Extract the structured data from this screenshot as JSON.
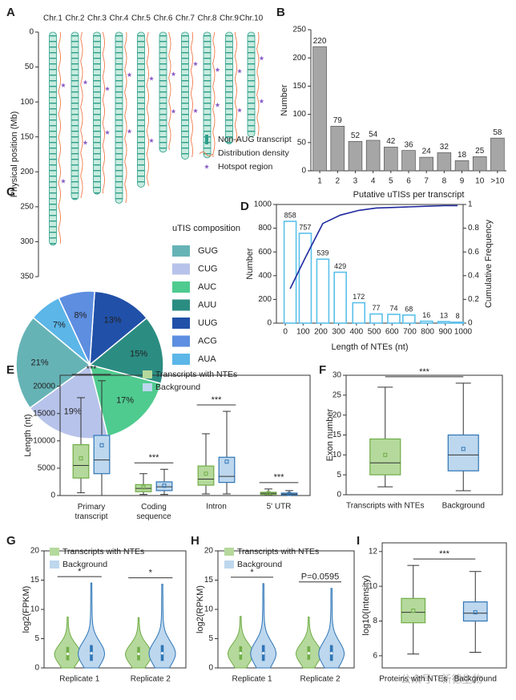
{
  "chart_data": [
    {
      "type": "ideogram",
      "panel": "A",
      "categories": [
        "Chr.1",
        "Chr.2",
        "Chr.3",
        "Chr.4",
        "Chr.5",
        "Chr.6",
        "Chr.7",
        "Chr.8",
        "Chr.9",
        "Chr.10"
      ],
      "values": [
        305,
        240,
        232,
        245,
        222,
        172,
        182,
        180,
        160,
        150
      ],
      "ylabel": "Physical position (Mb)",
      "ylim": [
        0,
        350
      ],
      "yticks": [
        0,
        50,
        100,
        150,
        200,
        250,
        300,
        350
      ],
      "color": "#2e9e8a",
      "density_color": "#f07a4a",
      "hotspot_color": "#8a5cc8",
      "legend": [
        "Non-AUG transcript",
        "Distribution density",
        "Hotspot region"
      ]
    },
    {
      "type": "bar",
      "panel": "B",
      "categories": [
        "1",
        "2",
        "3",
        "4",
        "5",
        "6",
        "7",
        "8",
        "9",
        "10",
        ">10"
      ],
      "values": [
        220,
        79,
        52,
        54,
        42,
        36,
        24,
        32,
        18,
        25,
        58
      ],
      "xlabel": "Putative uTISs per transcript",
      "ylabel": "Number",
      "ylim": [
        0,
        250
      ],
      "yticks": [
        0,
        50,
        100,
        150,
        200,
        250
      ],
      "color": "#a6a6a6"
    },
    {
      "type": "pie",
      "panel": "C",
      "legend_title": "uTIS composition",
      "categories": [
        "GUG",
        "CUG",
        "AUC",
        "AUU",
        "UUG",
        "ACG",
        "AUA"
      ],
      "values": [
        21,
        19,
        17,
        15,
        13,
        8,
        7
      ],
      "value_labels": [
        "21%",
        "19%",
        "17%",
        "15%",
        "13%",
        "8%",
        "7%"
      ],
      "colors": [
        "#66b3b6",
        "#b7c3ea",
        "#4fcb8f",
        "#2b8c82",
        "#2150a8",
        "#5d8ee0",
        "#5cb6e8"
      ]
    },
    {
      "type": "bar_line",
      "panel": "D",
      "x": [
        27,
        112,
        211,
        309,
        413,
        511,
        610,
        695,
        794,
        892,
        969
      ],
      "series": [
        {
          "values": [
            858,
            757,
            539,
            429,
            172,
            77,
            74,
            68,
            16,
            13,
            8
          ],
          "color": "#5bc0eb"
        },
        {
          "values": [
            0.29,
            0.55,
            0.84,
            0.91,
            0.95,
            0.97,
            0.975,
            0.98,
            0.985,
            0.99,
            0.99
          ],
          "color": "#1f2a9e",
          "axis": "y2"
        }
      ],
      "xlabel": "Length of NTEs (nt)",
      "ylabel": "Number",
      "y2label": "Cumulative Frequency",
      "xlim": [
        -50,
        1000
      ],
      "xticks": [
        0,
        100,
        200,
        300,
        400,
        500,
        600,
        700,
        800,
        900,
        1000
      ],
      "ylim": [
        0,
        1000
      ],
      "yticks": [
        0,
        200,
        400,
        600,
        800,
        1000
      ],
      "y2lim": [
        0,
        1
      ],
      "y2ticks": [
        0,
        0.2,
        0.4,
        0.6,
        0.8,
        1
      ]
    },
    {
      "type": "box",
      "panel": "E",
      "categories": [
        "Primary transcript",
        "Coding sequence",
        "Intron",
        "5' UTR"
      ],
      "series": [
        {
          "name": "Transcripts with NTEs",
          "color": "#b5d99c",
          "edgecolor": "#70ad47",
          "values": [
            {
              "min": 500,
              "q1": 3200,
              "median": 5500,
              "q3": 9300,
              "max": 17900,
              "mean": 6800
            },
            {
              "min": 200,
              "q1": 700,
              "median": 1300,
              "q3": 2000,
              "max": 4000,
              "mean": 1500
            },
            {
              "min": 300,
              "q1": 1900,
              "median": 3000,
              "q3": 5400,
              "max": 11300,
              "mean": 4000
            },
            {
              "min": 50,
              "q1": 200,
              "median": 400,
              "q3": 600,
              "max": 1200,
              "mean": 450
            }
          ]
        },
        {
          "name": "Background",
          "color": "#bdd7ee",
          "edgecolor": "#2e75b6",
          "values": [
            {
              "min": 0,
              "q1": 4000,
              "median": 6500,
              "q3": 11000,
              "max": 21000,
              "mean": 9200
            },
            {
              "min": 200,
              "q1": 900,
              "median": 1600,
              "q3": 2500,
              "max": 4800,
              "mean": 1800
            },
            {
              "min": 300,
              "q1": 2400,
              "median": 3500,
              "q3": 7000,
              "max": 15400,
              "mean": 6200
            },
            {
              "min": 30,
              "q1": 100,
              "median": 250,
              "q3": 450,
              "max": 900,
              "mean": 300
            }
          ]
        }
      ],
      "annotations": [
        "***",
        "***",
        "***",
        "***"
      ],
      "ylabel": "Length (nt)",
      "ylim": [
        0,
        22000
      ],
      "yticks": [
        0,
        5000,
        10000,
        15000,
        20000
      ]
    },
    {
      "type": "box",
      "panel": "F",
      "categories": [
        "Transcripts with NTEs",
        "Background"
      ],
      "values": [
        {
          "min": 2,
          "q1": 5,
          "median": 8,
          "q3": 14,
          "max": 27,
          "mean": 10
        },
        {
          "min": 1,
          "q1": 6,
          "median": 10,
          "q3": 15,
          "max": 28,
          "mean": 11.5
        }
      ],
      "colors": [
        "#b5d99c",
        "#bdd7ee"
      ],
      "edgecolors": [
        "#70ad47",
        "#2e75b6"
      ],
      "annotations": [
        "***"
      ],
      "ylabel": "Exon number",
      "ylim": [
        0,
        30
      ],
      "yticks": [
        0,
        5,
        10,
        15,
        20,
        25,
        30
      ]
    },
    {
      "type": "violin",
      "panel": "G",
      "categories": [
        "Replicate 1",
        "Replicate 2"
      ],
      "series": [
        {
          "name": "Transcripts with NTEs",
          "color": "#b5d99c",
          "edgecolor": "#70ad47",
          "values": [
            {
              "min": 0,
              "q1": 1.3,
              "median": 2.4,
              "q3": 3.6,
              "max": 8.7
            },
            {
              "min": 0,
              "q1": 1.3,
              "median": 2.4,
              "q3": 3.6,
              "max": 8.6
            }
          ]
        },
        {
          "name": "Background",
          "color": "#bdd7ee",
          "edgecolor": "#2e75b6",
          "values": [
            {
              "min": 0,
              "q1": 1.2,
              "median": 2.5,
              "q3": 3.9,
              "max": 14.5
            },
            {
              "min": 0,
              "q1": 1.2,
              "median": 2.5,
              "q3": 3.9,
              "max": 14.3
            }
          ]
        }
      ],
      "annotations": [
        "*",
        "*"
      ],
      "ylabel": "log2(FPKM)",
      "ylim": [
        0,
        20
      ],
      "yticks": [
        0,
        5,
        10,
        15,
        20
      ]
    },
    {
      "type": "violin",
      "panel": "H",
      "categories": [
        "Replicate 1",
        "Replicate 2"
      ],
      "series": [
        {
          "name": "Transcripts with NTEs",
          "color": "#b5d99c",
          "edgecolor": "#70ad47",
          "values": [
            {
              "min": 0,
              "q1": 1.4,
              "median": 2.5,
              "q3": 3.7,
              "max": 8.8
            },
            {
              "min": 0,
              "q1": 1.4,
              "median": 2.5,
              "q3": 3.7,
              "max": 8.7
            }
          ]
        },
        {
          "name": "Background",
          "color": "#bdd7ee",
          "edgecolor": "#2e75b6",
          "values": [
            {
              "min": 0,
              "q1": 1.2,
              "median": 2.5,
              "q3": 3.9,
              "max": 14.4
            },
            {
              "min": 0,
              "q1": 1.2,
              "median": 2.5,
              "q3": 3.9,
              "max": 13.6
            }
          ]
        }
      ],
      "annotations": [
        "*",
        "P=0.0595"
      ],
      "ylabel": "log2(RPKM)",
      "ylim": [
        0,
        20
      ],
      "yticks": [
        0,
        5,
        10,
        15,
        20
      ]
    },
    {
      "type": "box",
      "panel": "I",
      "categories": [
        "Proteins with NTEs",
        "Background"
      ],
      "values": [
        {
          "min": 6.1,
          "q1": 7.9,
          "median": 8.5,
          "q3": 9.3,
          "max": 11.2,
          "mean": 8.6
        },
        {
          "min": 6.2,
          "q1": 8.0,
          "median": 8.45,
          "q3": 9.1,
          "max": 10.85,
          "mean": 8.5
        }
      ],
      "colors": [
        "#b5d99c",
        "#bdd7ee"
      ],
      "edgecolors": [
        "#70ad47",
        "#2e75b6"
      ],
      "annotations": [
        "***"
      ],
      "ylabel": "log10(Intensity)",
      "ylim": [
        5.3,
        12.5
      ],
      "yticks": [
        6,
        8,
        10,
        12
      ]
    }
  ],
  "watermark": "公众号 · 新德生物"
}
